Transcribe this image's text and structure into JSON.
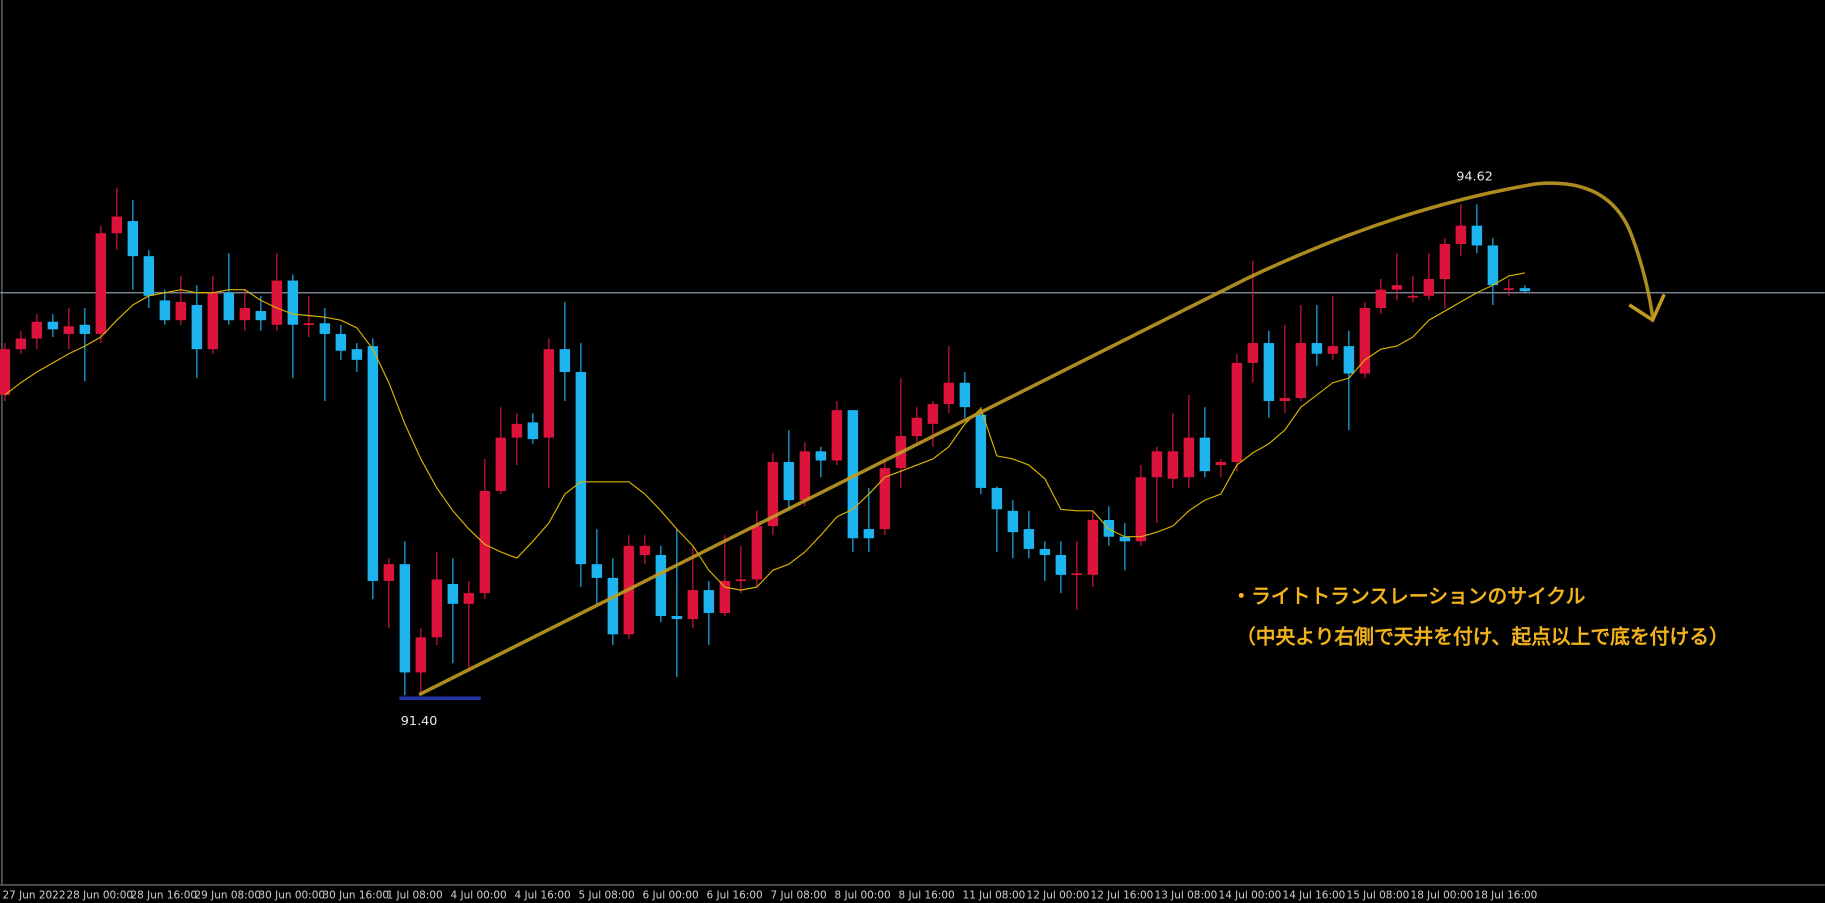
{
  "chart_data": {
    "type": "candlestick",
    "categories": [
      "27 Jun 2022",
      null,
      null,
      null,
      "28 Jun 00:00",
      null,
      null,
      null,
      "28 Jun 16:00",
      null,
      null,
      null,
      "29 Jun 08:00",
      null,
      null,
      null,
      "30 Jun 00:00",
      null,
      null,
      null,
      "30 Jun 16:00",
      null,
      null,
      null,
      "1 Jul 08:00",
      null,
      null,
      null,
      "4 Jul 00:00",
      null,
      null,
      null,
      "4 Jul 16:00",
      null,
      null,
      null,
      "5 Jul 08:00",
      null,
      null,
      null,
      "6 Jul 00:00",
      null,
      null,
      null,
      "6 Jul 16:00",
      null,
      null,
      null,
      "7 Jul 08:00",
      null,
      null,
      null,
      "8 Jul 00:00",
      null,
      null,
      null,
      "8 Jul 16:00",
      null,
      null,
      null,
      "11 Jul 08:00",
      null,
      null,
      null,
      "12 Jul 00:00",
      null,
      null,
      null,
      "12 Jul 16:00",
      null,
      null,
      null,
      "13 Jul 08:00",
      null,
      null,
      null,
      "14 Jul 00:00",
      null,
      null,
      null,
      "14 Jul 16:00",
      null,
      null,
      null,
      "15 Jul 08:00",
      null,
      null,
      null,
      "18 Jul 00:00",
      null,
      null,
      null,
      "18 Jul 16:00",
      null,
      null,
      null
    ],
    "ohlc": [
      [
        93.37,
        93.71,
        93.33,
        93.67
      ],
      [
        93.67,
        93.79,
        93.64,
        93.74
      ],
      [
        93.74,
        93.9,
        93.67,
        93.85
      ],
      [
        93.85,
        93.9,
        93.75,
        93.8
      ],
      [
        93.77,
        93.94,
        93.67,
        93.82
      ],
      [
        93.83,
        93.94,
        93.46,
        93.77
      ],
      [
        93.77,
        94.48,
        93.71,
        94.43
      ],
      [
        94.43,
        94.73,
        94.32,
        94.54
      ],
      [
        94.51,
        94.65,
        94.06,
        94.28
      ],
      [
        94.28,
        94.32,
        93.94,
        94.02
      ],
      [
        93.99,
        94.06,
        93.83,
        93.86
      ],
      [
        93.86,
        94.15,
        93.83,
        93.98
      ],
      [
        93.96,
        94.09,
        93.48,
        93.67
      ],
      [
        93.67,
        94.15,
        93.64,
        94.04
      ],
      [
        94.04,
        94.3,
        93.83,
        93.86
      ],
      [
        93.86,
        94.06,
        93.79,
        93.94
      ],
      [
        93.92,
        94.02,
        93.79,
        93.86
      ],
      [
        93.83,
        94.3,
        93.79,
        94.12
      ],
      [
        94.12,
        94.16,
        93.48,
        93.83
      ],
      [
        93.83,
        94.02,
        93.75,
        93.84
      ],
      [
        93.84,
        93.94,
        93.33,
        93.77
      ],
      [
        93.77,
        93.83,
        93.6,
        93.66
      ],
      [
        93.67,
        93.71,
        93.52,
        93.6
      ],
      [
        93.69,
        93.74,
        92.03,
        92.15
      ],
      [
        92.15,
        92.3,
        91.84,
        92.26
      ],
      [
        92.26,
        92.41,
        91.4,
        91.55
      ],
      [
        91.55,
        91.84,
        91.41,
        91.78
      ],
      [
        91.78,
        92.34,
        91.73,
        92.16
      ],
      [
        92.13,
        92.3,
        91.61,
        92.0
      ],
      [
        92.0,
        92.15,
        91.58,
        92.07
      ],
      [
        92.07,
        92.95,
        92.03,
        92.74
      ],
      [
        92.74,
        93.29,
        92.72,
        93.09
      ],
      [
        93.09,
        93.25,
        92.91,
        93.18
      ],
      [
        93.19,
        93.25,
        93.05,
        93.08
      ],
      [
        93.09,
        93.74,
        92.76,
        93.67
      ],
      [
        93.67,
        93.98,
        93.33,
        93.52
      ],
      [
        93.52,
        93.71,
        92.11,
        92.26
      ],
      [
        92.26,
        92.49,
        92.0,
        92.17
      ],
      [
        92.17,
        92.3,
        91.73,
        91.8
      ],
      [
        91.8,
        92.45,
        91.77,
        92.38
      ],
      [
        92.32,
        92.45,
        92.26,
        92.38
      ],
      [
        92.32,
        92.38,
        91.88,
        91.92
      ],
      [
        91.92,
        92.49,
        91.52,
        91.9
      ],
      [
        91.9,
        92.38,
        91.84,
        92.09
      ],
      [
        92.09,
        92.15,
        91.73,
        91.94
      ],
      [
        91.94,
        92.45,
        91.92,
        92.15
      ],
      [
        92.15,
        92.38,
        92.07,
        92.16
      ],
      [
        92.16,
        92.61,
        92.11,
        92.51
      ],
      [
        92.51,
        92.99,
        92.45,
        92.93
      ],
      [
        92.93,
        93.14,
        92.61,
        92.68
      ],
      [
        92.68,
        93.06,
        92.64,
        93.0
      ],
      [
        93.0,
        93.03,
        92.83,
        92.94
      ],
      [
        92.94,
        93.33,
        92.91,
        93.27
      ],
      [
        93.27,
        93.27,
        92.34,
        92.43
      ],
      [
        92.49,
        92.76,
        92.34,
        92.43
      ],
      [
        92.49,
        92.95,
        92.45,
        92.89
      ],
      [
        92.89,
        93.48,
        92.76,
        93.1
      ],
      [
        93.1,
        93.29,
        93.06,
        93.22
      ],
      [
        93.18,
        93.33,
        93.03,
        93.31
      ],
      [
        93.31,
        93.69,
        93.25,
        93.45
      ],
      [
        93.45,
        93.52,
        93.22,
        93.29
      ],
      [
        93.24,
        93.29,
        92.72,
        92.76
      ],
      [
        92.76,
        92.77,
        92.34,
        92.62
      ],
      [
        92.61,
        92.68,
        92.3,
        92.47
      ],
      [
        92.49,
        92.61,
        92.3,
        92.36
      ],
      [
        92.36,
        92.41,
        92.15,
        92.32
      ],
      [
        92.32,
        92.41,
        92.07,
        92.19
      ],
      [
        92.19,
        92.41,
        91.96,
        92.2
      ],
      [
        92.19,
        92.61,
        92.11,
        92.55
      ],
      [
        92.55,
        92.64,
        92.38,
        92.44
      ],
      [
        92.44,
        92.53,
        92.22,
        92.41
      ],
      [
        92.41,
        92.91,
        92.38,
        92.83
      ],
      [
        92.83,
        93.03,
        92.53,
        93.0
      ],
      [
        92.82,
        93.25,
        92.76,
        93.0
      ],
      [
        92.83,
        93.37,
        92.76,
        93.09
      ],
      [
        93.09,
        93.29,
        92.83,
        92.87
      ],
      [
        92.91,
        92.95,
        92.83,
        92.93
      ],
      [
        92.93,
        93.64,
        92.87,
        93.58
      ],
      [
        93.58,
        94.25,
        93.45,
        93.71
      ],
      [
        93.71,
        93.79,
        93.22,
        93.33
      ],
      [
        93.33,
        93.83,
        93.25,
        93.35
      ],
      [
        93.35,
        93.96,
        93.33,
        93.71
      ],
      [
        93.71,
        93.96,
        93.56,
        93.64
      ],
      [
        93.64,
        94.02,
        93.6,
        93.69
      ],
      [
        93.69,
        93.79,
        93.14,
        93.51
      ],
      [
        93.51,
        93.98,
        93.48,
        93.94
      ],
      [
        93.94,
        94.13,
        93.9,
        94.06
      ],
      [
        94.06,
        94.3,
        93.99,
        94.09
      ],
      [
        94.02,
        94.15,
        93.98,
        94.02
      ],
      [
        94.02,
        94.3,
        93.99,
        94.13
      ],
      [
        94.13,
        94.4,
        93.94,
        94.36
      ],
      [
        94.36,
        94.62,
        94.28,
        94.48
      ],
      [
        94.48,
        94.62,
        94.3,
        94.35
      ],
      [
        94.35,
        94.4,
        93.96,
        94.09
      ],
      [
        94.07,
        94.13,
        94.02,
        94.07
      ],
      [
        94.07,
        94.09,
        94.04,
        94.05
      ]
    ],
    "up_color": "#dc143c",
    "down_color": "#1eb4f0",
    "ma": {
      "color": "#d8b400",
      "values": [
        93.37,
        93.45,
        93.52,
        93.58,
        93.64,
        93.69,
        93.75,
        93.86,
        93.96,
        94.02,
        94.04,
        94.06,
        94.04,
        94.04,
        94.06,
        94.06,
        93.99,
        93.94,
        93.9,
        93.89,
        93.88,
        93.86,
        93.81,
        93.67,
        93.45,
        93.18,
        92.95,
        92.76,
        92.61,
        92.49,
        92.39,
        92.34,
        92.3,
        92.41,
        92.53,
        92.72,
        92.8,
        92.8,
        92.8,
        92.8,
        92.72,
        92.61,
        92.49,
        92.38,
        92.22,
        92.11,
        92.09,
        92.11,
        92.22,
        92.26,
        92.34,
        92.45,
        92.57,
        92.62,
        92.72,
        92.83,
        92.87,
        92.91,
        92.95,
        93.03,
        93.18,
        93.28,
        92.97,
        92.95,
        92.91,
        92.82,
        92.62,
        92.61,
        92.61,
        92.49,
        92.44,
        92.44,
        92.47,
        92.51,
        92.61,
        92.68,
        92.72,
        92.91,
        92.99,
        93.05,
        93.14,
        93.29,
        93.37,
        93.45,
        93.48,
        93.6,
        93.67,
        93.69,
        93.75,
        93.86,
        93.92,
        93.98,
        94.04,
        94.09,
        94.15,
        94.17
      ]
    },
    "hline": {
      "value": 94.04,
      "color": "#8a9aa8"
    },
    "ylim": [
      90.16,
      95.96
    ],
    "high_label": "94.62",
    "low_label": "91.40",
    "annotations": [
      "・ライトトランスレーションのサイクル",
      "（中央より右側で天井を付け、起点以上で底を付ける）"
    ]
  }
}
